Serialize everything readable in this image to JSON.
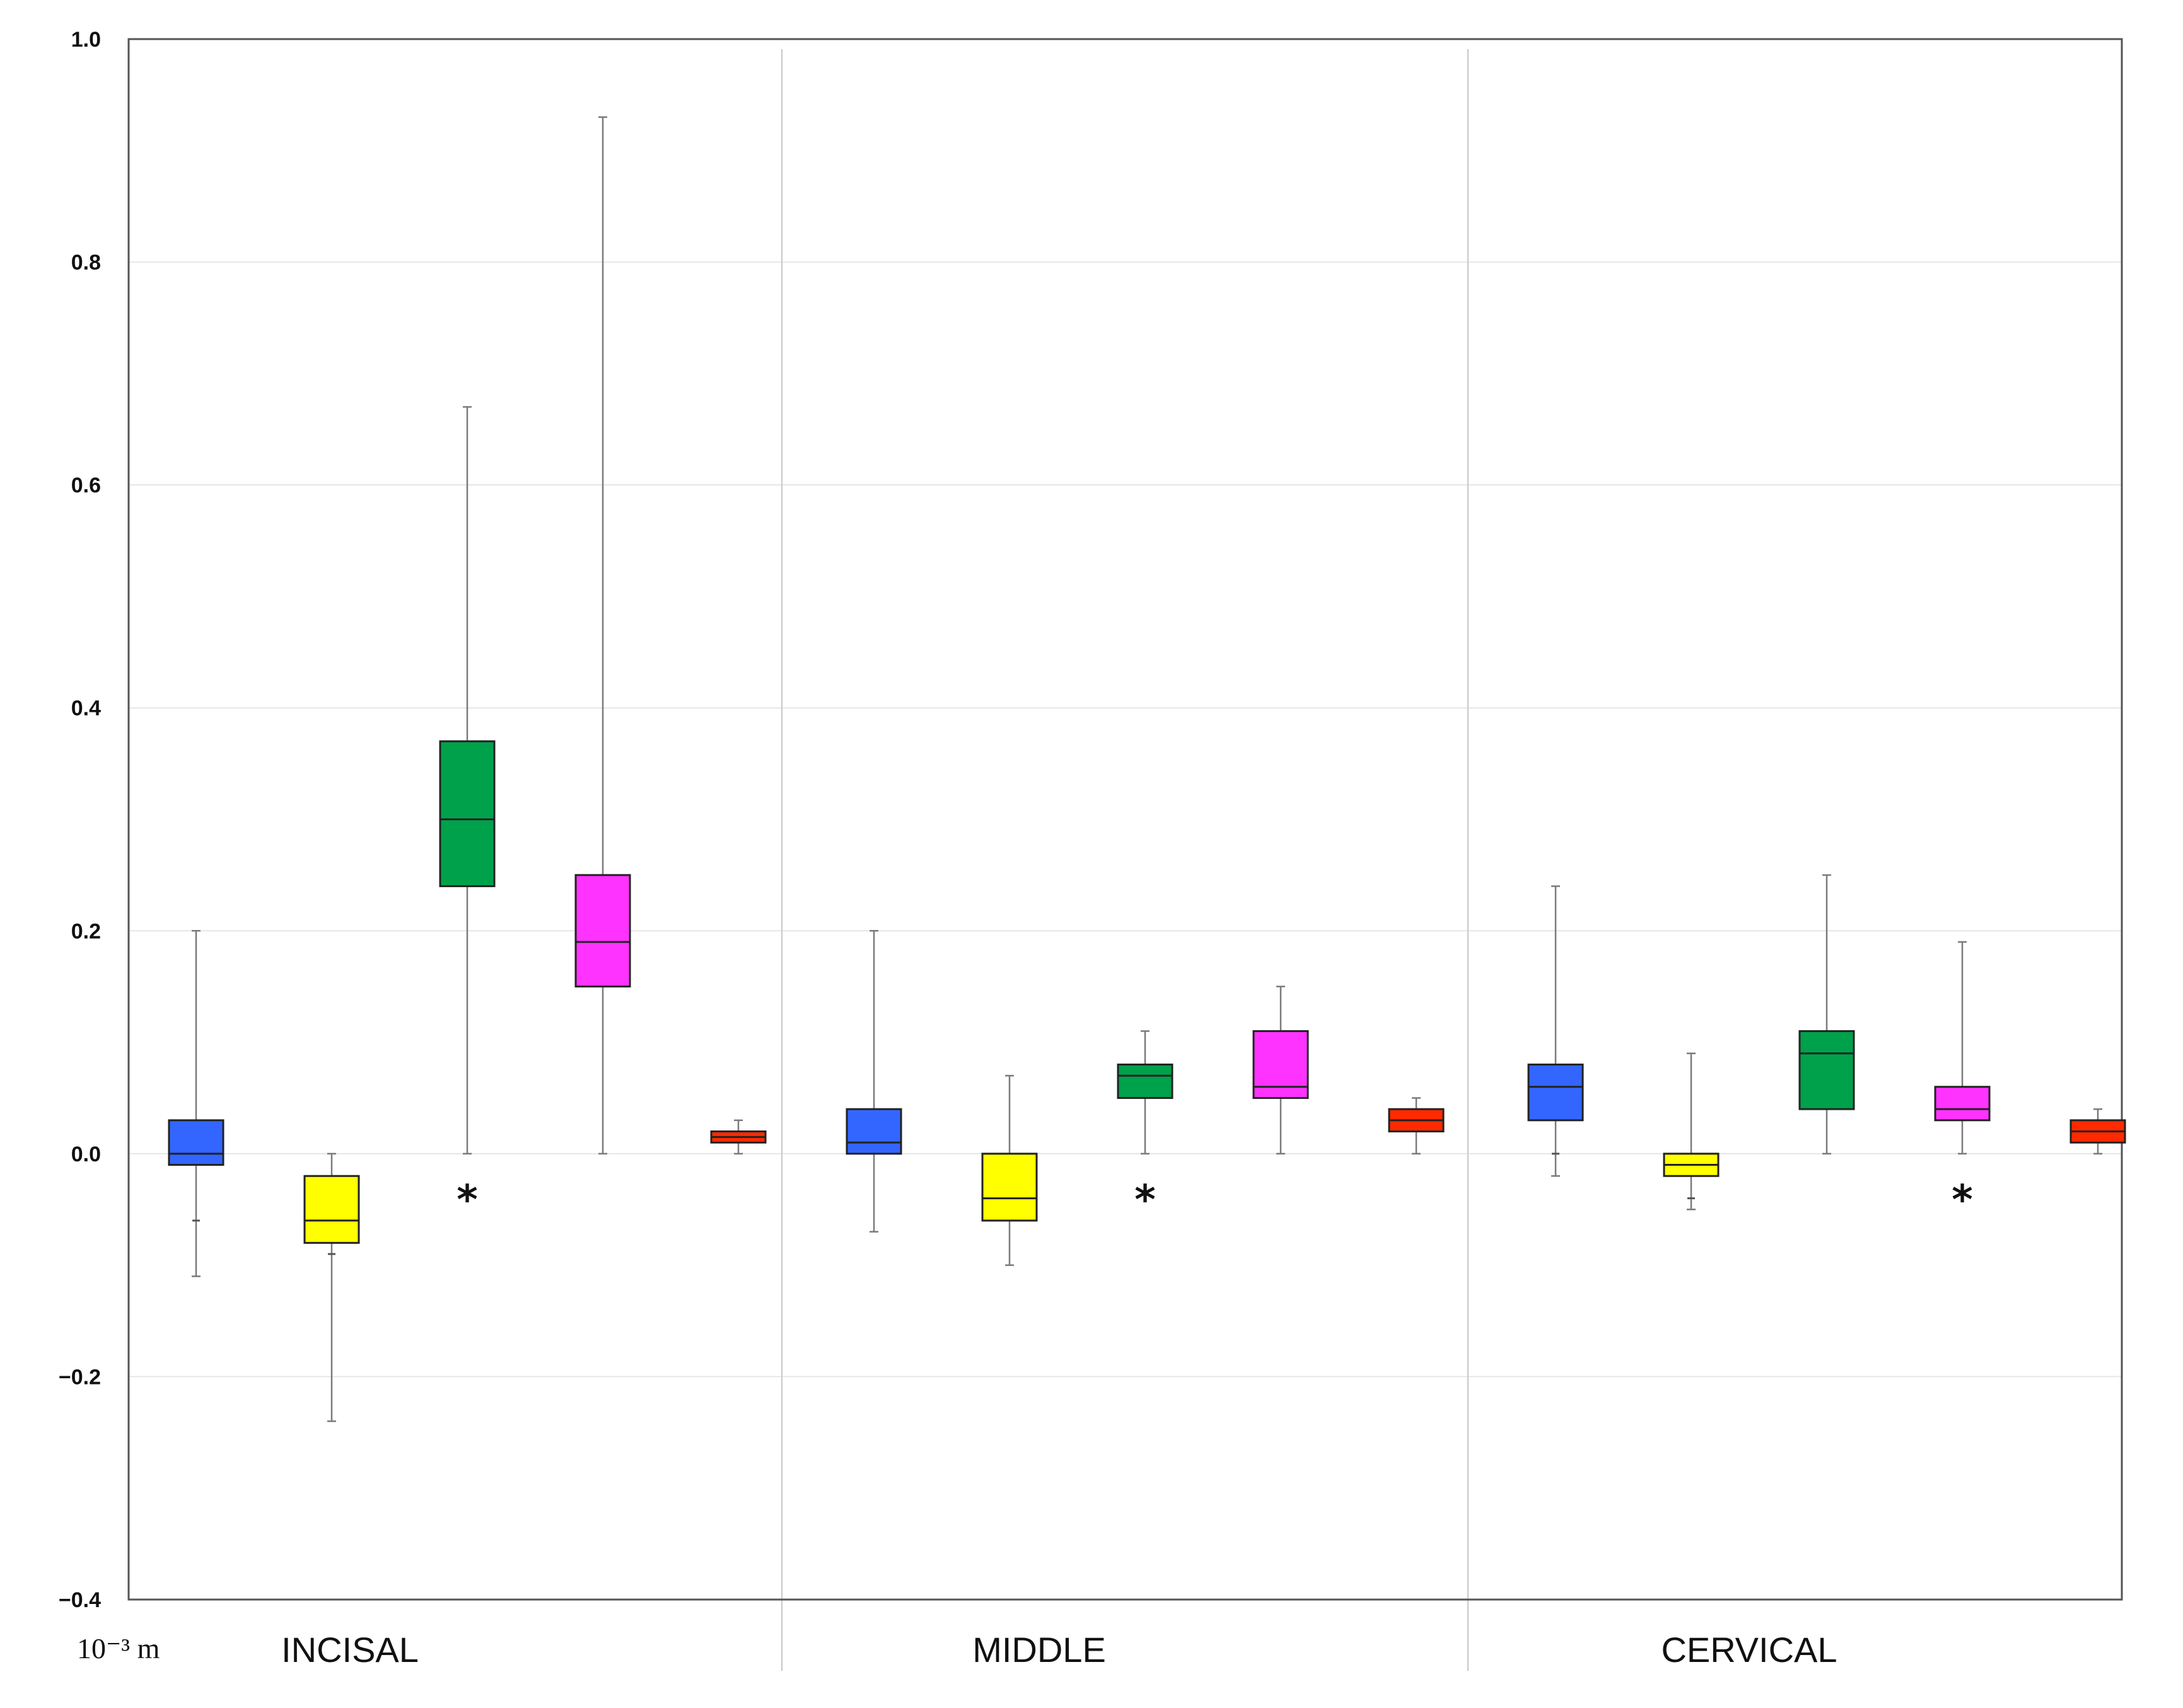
{
  "chart_data": {
    "type": "box",
    "title": "",
    "xlabel": "",
    "ylabel": "",
    "unit_label": "10⁻³ m",
    "ylim": [
      -0.4,
      1.0
    ],
    "yticks": [
      "1.0",
      "0.8",
      "0.6",
      "0.4",
      "0.2",
      "0.0",
      "−0.2",
      "−0.4"
    ],
    "ytick_values": [
      1.0,
      0.8,
      0.6,
      0.4,
      0.2,
      0.0,
      -0.2,
      -0.4
    ],
    "grid": true,
    "legend": "none",
    "colors": [
      "#3366ff",
      "#ffff00",
      "#00a14b",
      "#ff33ff",
      "#ff2a00"
    ],
    "groups": [
      {
        "label": "INCISAL",
        "boxes": [
          {
            "min": -0.11,
            "q1": -0.01,
            "median": 0.0,
            "q3": 0.03,
            "max": 0.2,
            "outliers": [
              -0.06
            ]
          },
          {
            "min": -0.24,
            "q1": -0.08,
            "median": -0.06,
            "q3": -0.02,
            "max": 0.0,
            "outliers": [
              -0.09
            ]
          },
          {
            "min": 0.0,
            "q1": 0.24,
            "median": 0.3,
            "q3": 0.37,
            "max": 0.67,
            "outliers": [],
            "star": "*"
          },
          {
            "min": 0.0,
            "q1": 0.15,
            "median": 0.19,
            "q3": 0.25,
            "max": 0.93,
            "outliers": []
          },
          {
            "min": 0.0,
            "q1": 0.01,
            "median": 0.015,
            "q3": 0.02,
            "max": 0.03,
            "outliers": []
          }
        ]
      },
      {
        "label": "MIDDLE",
        "boxes": [
          {
            "min": -0.07,
            "q1": 0.0,
            "median": 0.01,
            "q3": 0.04,
            "max": 0.2,
            "outliers": []
          },
          {
            "min": -0.1,
            "q1": -0.06,
            "median": -0.04,
            "q3": 0.0,
            "max": 0.07,
            "outliers": []
          },
          {
            "min": 0.0,
            "q1": 0.05,
            "median": 0.07,
            "q3": 0.08,
            "max": 0.11,
            "outliers": [],
            "star": "*"
          },
          {
            "min": 0.0,
            "q1": 0.05,
            "median": 0.06,
            "q3": 0.11,
            "max": 0.15,
            "outliers": []
          },
          {
            "min": 0.0,
            "q1": 0.02,
            "median": 0.03,
            "q3": 0.04,
            "max": 0.05,
            "outliers": []
          }
        ]
      },
      {
        "label": "CERVICAL",
        "boxes": [
          {
            "min": -0.02,
            "q1": 0.03,
            "median": 0.06,
            "q3": 0.08,
            "max": 0.24,
            "outliers": [
              0.0
            ]
          },
          {
            "min": -0.05,
            "q1": -0.02,
            "median": -0.01,
            "q3": 0.0,
            "max": 0.09,
            "outliers": [
              -0.04
            ]
          },
          {
            "min": 0.0,
            "q1": 0.04,
            "median": 0.09,
            "q3": 0.11,
            "max": 0.25,
            "outliers": []
          },
          {
            "min": 0.0,
            "q1": 0.03,
            "median": 0.04,
            "q3": 0.06,
            "max": 0.19,
            "outliers": [],
            "star": "*"
          },
          {
            "min": 0.0,
            "q1": 0.01,
            "median": 0.02,
            "q3": 0.03,
            "max": 0.04,
            "outliers": []
          }
        ]
      }
    ]
  }
}
